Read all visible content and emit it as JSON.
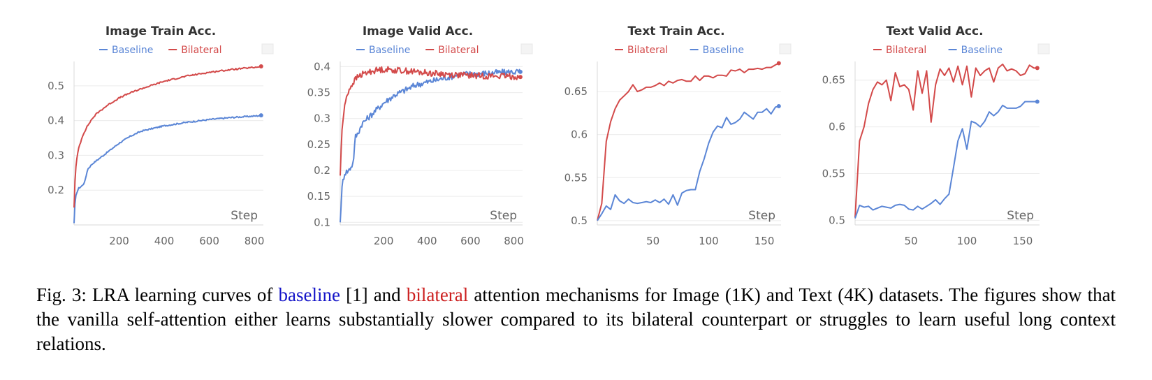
{
  "colors": {
    "baseline": "#5b86d6",
    "bilateral": "#d34a4a",
    "caption_blue": "#1414c8",
    "caption_red": "#cc1f1f"
  },
  "chart_data": [
    {
      "type": "line",
      "title": "Image Train Acc.",
      "xlabel": "Step",
      "legend_order": [
        "Baseline",
        "Bilateral"
      ],
      "xlim": [
        0,
        840
      ],
      "ylim": [
        0.1,
        0.57
      ],
      "xticks": [
        200,
        400,
        600,
        800
      ],
      "yticks": [
        0.2,
        0.3,
        0.4,
        0.5
      ],
      "ytick_labels": [
        "0.2",
        "0.3",
        "0.4",
        "0.5"
      ],
      "noise": 0.002,
      "series": [
        {
          "name": "Baseline",
          "color": "#5b86d6",
          "x": [
            0,
            5,
            10,
            20,
            40,
            50,
            60,
            80,
            100,
            150,
            200,
            250,
            300,
            400,
            500,
            600,
            700,
            800,
            830
          ],
          "y": [
            0.105,
            0.17,
            0.19,
            0.205,
            0.215,
            0.23,
            0.26,
            0.275,
            0.285,
            0.31,
            0.335,
            0.355,
            0.37,
            0.385,
            0.395,
            0.403,
            0.409,
            0.413,
            0.415
          ]
        },
        {
          "name": "Bilateral",
          "color": "#d34a4a",
          "x": [
            0,
            5,
            10,
            20,
            40,
            60,
            80,
            100,
            150,
            200,
            250,
            300,
            400,
            500,
            600,
            700,
            800,
            830
          ],
          "y": [
            0.15,
            0.24,
            0.28,
            0.32,
            0.36,
            0.385,
            0.405,
            0.42,
            0.445,
            0.465,
            0.48,
            0.492,
            0.513,
            0.528,
            0.539,
            0.547,
            0.553,
            0.556
          ]
        }
      ]
    },
    {
      "type": "line",
      "title": "Image Valid Acc.",
      "xlabel": "Step",
      "legend_order": [
        "Baseline",
        "Bilateral"
      ],
      "xlim": [
        0,
        840
      ],
      "ylim": [
        0.095,
        0.41
      ],
      "xticks": [
        200,
        400,
        600,
        800
      ],
      "yticks": [
        0.1,
        0.15,
        0.2,
        0.25,
        0.3,
        0.35,
        0.4
      ],
      "ytick_labels": [
        "0.1",
        "0.15",
        "0.2",
        "0.25",
        "0.3",
        "0.35",
        "0.4"
      ],
      "noise": 0.006,
      "series": [
        {
          "name": "Baseline",
          "color": "#5b86d6",
          "x": [
            0,
            5,
            10,
            20,
            40,
            60,
            70,
            80,
            100,
            150,
            200,
            250,
            300,
            350,
            400,
            450,
            500,
            550,
            600,
            700,
            800,
            830
          ],
          "y": [
            0.1,
            0.145,
            0.175,
            0.195,
            0.2,
            0.215,
            0.265,
            0.27,
            0.29,
            0.31,
            0.33,
            0.345,
            0.355,
            0.365,
            0.37,
            0.375,
            0.38,
            0.385,
            0.386,
            0.388,
            0.39,
            0.39
          ]
        },
        {
          "name": "Bilateral",
          "color": "#d34a4a",
          "x": [
            0,
            5,
            10,
            20,
            30,
            40,
            60,
            80,
            100,
            150,
            200,
            300,
            400,
            500,
            600,
            700,
            800,
            830
          ],
          "y": [
            0.19,
            0.25,
            0.29,
            0.32,
            0.345,
            0.355,
            0.37,
            0.38,
            0.385,
            0.392,
            0.395,
            0.392,
            0.388,
            0.385,
            0.383,
            0.382,
            0.381,
            0.38
          ]
        }
      ]
    },
    {
      "type": "line",
      "title": "Text Train Acc.",
      "xlabel": "Step",
      "legend_order": [
        "Bilateral",
        "Baseline"
      ],
      "xlim": [
        0,
        165
      ],
      "ylim": [
        0.495,
        0.685
      ],
      "xticks": [
        50,
        100,
        150
      ],
      "yticks": [
        0.5,
        0.55,
        0.6,
        0.65
      ],
      "ytick_labels": [
        "0.5",
        "0.55",
        "0.6",
        "0.65"
      ],
      "noise": 0,
      "series": [
        {
          "name": "Bilateral",
          "color": "#d34a4a",
          "x": [
            0,
            4,
            8,
            12,
            16,
            20,
            24,
            28,
            32,
            36,
            40,
            44,
            48,
            52,
            56,
            60,
            64,
            68,
            72,
            76,
            80,
            84,
            88,
            92,
            96,
            100,
            104,
            108,
            112,
            116,
            120,
            124,
            128,
            132,
            136,
            140,
            144,
            148,
            152,
            156,
            160,
            163
          ],
          "y": [
            0.5,
            0.52,
            0.592,
            0.615,
            0.63,
            0.64,
            0.645,
            0.65,
            0.658,
            0.65,
            0.652,
            0.655,
            0.655,
            0.657,
            0.66,
            0.657,
            0.662,
            0.66,
            0.663,
            0.664,
            0.662,
            0.662,
            0.668,
            0.663,
            0.668,
            0.668,
            0.666,
            0.669,
            0.669,
            0.668,
            0.675,
            0.674,
            0.676,
            0.672,
            0.676,
            0.676,
            0.677,
            0.676,
            0.678,
            0.678,
            0.681,
            0.683
          ]
        },
        {
          "name": "Baseline",
          "color": "#5b86d6",
          "x": [
            0,
            4,
            8,
            12,
            16,
            20,
            24,
            28,
            32,
            36,
            40,
            44,
            48,
            52,
            56,
            60,
            64,
            68,
            72,
            76,
            80,
            84,
            88,
            92,
            96,
            100,
            104,
            108,
            112,
            116,
            120,
            124,
            128,
            132,
            136,
            140,
            144,
            148,
            152,
            156,
            160,
            163
          ],
          "y": [
            0.5,
            0.508,
            0.517,
            0.513,
            0.53,
            0.523,
            0.52,
            0.525,
            0.521,
            0.52,
            0.521,
            0.522,
            0.521,
            0.524,
            0.521,
            0.525,
            0.519,
            0.53,
            0.518,
            0.532,
            0.535,
            0.536,
            0.536,
            0.557,
            0.572,
            0.59,
            0.603,
            0.61,
            0.608,
            0.62,
            0.612,
            0.614,
            0.618,
            0.626,
            0.622,
            0.618,
            0.626,
            0.626,
            0.63,
            0.624,
            0.632,
            0.633
          ]
        }
      ]
    },
    {
      "type": "line",
      "title": "Text Valid Acc.",
      "xlabel": "Step",
      "legend_order": [
        "Bilateral",
        "Baseline"
      ],
      "xlim": [
        0,
        165
      ],
      "ylim": [
        0.495,
        0.67
      ],
      "xticks": [
        50,
        100,
        150
      ],
      "yticks": [
        0.5,
        0.55,
        0.6,
        0.65
      ],
      "ytick_labels": [
        "0.5",
        "0.55",
        "0.6",
        "0.65"
      ],
      "noise": 0,
      "series": [
        {
          "name": "Bilateral",
          "color": "#d34a4a",
          "x": [
            0,
            4,
            8,
            12,
            16,
            20,
            24,
            28,
            32,
            36,
            40,
            44,
            48,
            52,
            56,
            60,
            64,
            68,
            72,
            76,
            80,
            84,
            88,
            92,
            96,
            100,
            104,
            108,
            112,
            116,
            120,
            124,
            128,
            132,
            136,
            140,
            144,
            148,
            152,
            156,
            160,
            163
          ],
          "y": [
            0.503,
            0.585,
            0.6,
            0.625,
            0.64,
            0.648,
            0.645,
            0.65,
            0.628,
            0.658,
            0.643,
            0.645,
            0.64,
            0.618,
            0.66,
            0.636,
            0.66,
            0.605,
            0.645,
            0.662,
            0.655,
            0.663,
            0.648,
            0.665,
            0.645,
            0.665,
            0.632,
            0.663,
            0.655,
            0.66,
            0.663,
            0.648,
            0.663,
            0.667,
            0.66,
            0.662,
            0.66,
            0.655,
            0.657,
            0.666,
            0.663,
            0.663
          ]
        },
        {
          "name": "Baseline",
          "color": "#5b86d6",
          "x": [
            0,
            4,
            8,
            12,
            16,
            20,
            24,
            28,
            32,
            36,
            40,
            44,
            48,
            52,
            56,
            60,
            64,
            68,
            72,
            76,
            80,
            84,
            88,
            92,
            96,
            100,
            104,
            108,
            112,
            116,
            120,
            124,
            128,
            132,
            136,
            140,
            144,
            148,
            152,
            156,
            160,
            163
          ],
          "y": [
            0.502,
            0.516,
            0.514,
            0.515,
            0.511,
            0.513,
            0.515,
            0.514,
            0.513,
            0.516,
            0.517,
            0.516,
            0.512,
            0.511,
            0.515,
            0.512,
            0.515,
            0.518,
            0.522,
            0.517,
            0.523,
            0.528,
            0.556,
            0.585,
            0.598,
            0.576,
            0.606,
            0.604,
            0.6,
            0.606,
            0.616,
            0.612,
            0.616,
            0.623,
            0.62,
            0.62,
            0.62,
            0.622,
            0.627,
            0.627,
            0.627,
            0.627
          ]
        }
      ]
    }
  ],
  "caption": {
    "prefix": "Fig. 3: LRA learning curves of",
    "baseline_word": "baseline",
    "ref": "[1] and",
    "bilateral_word": "bilateral",
    "rest": "attention mechanisms for Image (1K) and Text (4K) datasets. The figures show that the vanilla self-attention either learns substantially slower compared to its bilateral counterpart or struggles to learn useful long context relations."
  }
}
